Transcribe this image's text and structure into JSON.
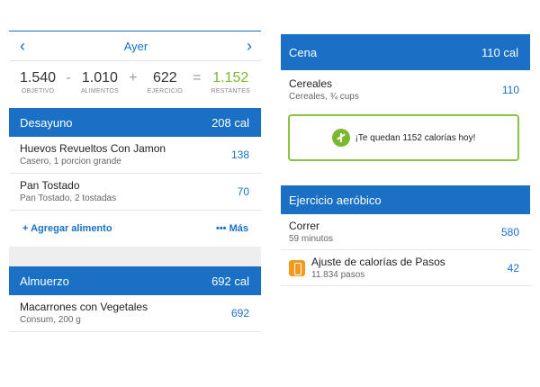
{
  "left": {
    "nav": {
      "title": "Ayer",
      "prev_icon": "chevron-left-icon",
      "next_icon": "chevron-right-icon"
    },
    "summary": {
      "goal": {
        "value": "1.540",
        "label": "OBJETIVO"
      },
      "op_minus": "-",
      "food": {
        "value": "1.010",
        "label": "ALIMENTOS"
      },
      "op_plus": "+",
      "exercise": {
        "value": "622",
        "label": "EJERCICIO"
      },
      "op_equals": "=",
      "remaining": {
        "value": "1.152",
        "label": "RESTANTES",
        "color": "#7cb82f"
      }
    },
    "breakfast": {
      "title": "Desayuno",
      "calories": "208 cal",
      "items": [
        {
          "name": "Huevos Revueltos Con Jamon",
          "detail": "Casero, 1 porcion grande",
          "cal": "138"
        },
        {
          "name": "Pan  Tostado",
          "detail": "Pan Tostado, 2 tostadas",
          "cal": "70"
        }
      ],
      "add_label": "+ Agregar alimento",
      "more_label": "••• Más"
    },
    "lunch": {
      "title": "Almuerzo",
      "calories": "692 cal",
      "items": [
        {
          "name": "Macarrones con Vegetales",
          "detail": "Consum, 200 g",
          "cal": "692"
        }
      ]
    }
  },
  "right": {
    "dinner": {
      "title": "Cena",
      "calories": "110 cal",
      "items": [
        {
          "name": "Cereales",
          "detail": "Cereales, ¾ cups",
          "cal": "110"
        }
      ]
    },
    "banner": {
      "text": "¡Te quedan 1152 calorías hoy!",
      "icon": "scale-icon",
      "color": "#8bc43e"
    },
    "exercise": {
      "title": "Ejercicio aeróbico",
      "items": [
        {
          "name": "Correr",
          "detail": "59 minutos",
          "cal": "580"
        },
        {
          "name": "Ajuste de calorías de Pasos",
          "detail": "11.834 pasos",
          "cal": "42",
          "icon": "phone-steps-icon"
        }
      ]
    }
  },
  "colors": {
    "accent": "#1a70c4",
    "green": "#7cb82f",
    "orange": "#f39a1e"
  }
}
